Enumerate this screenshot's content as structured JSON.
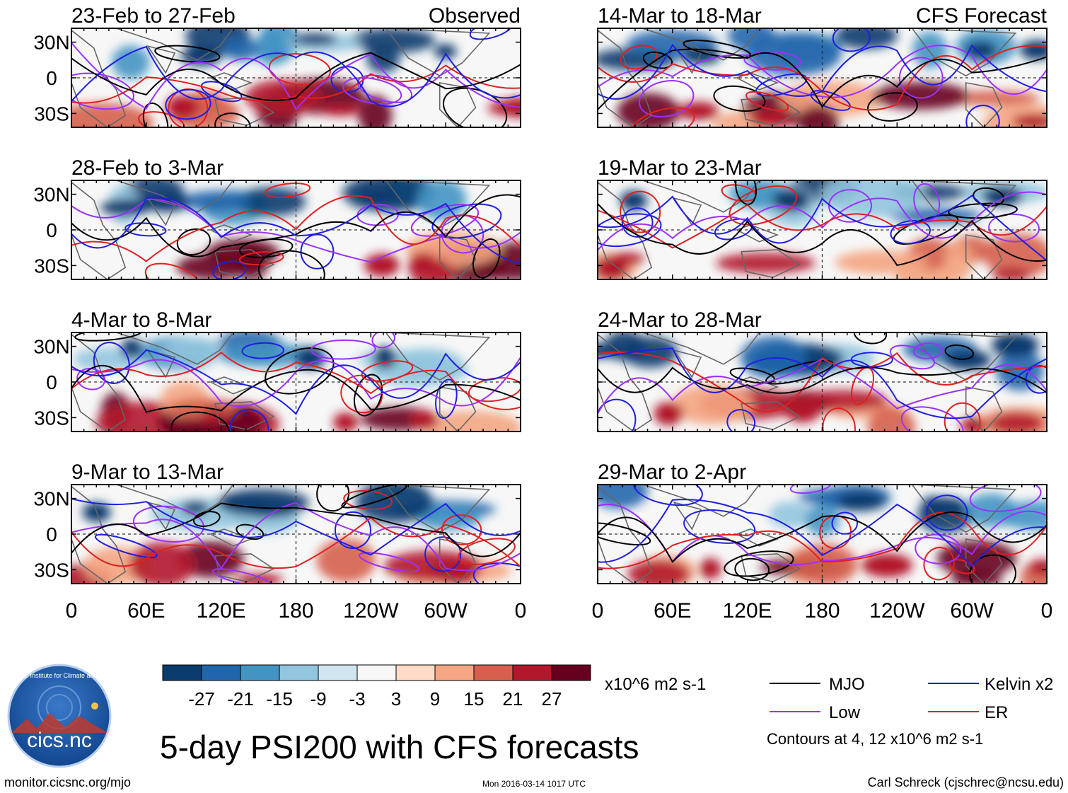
{
  "title": "5-day PSI200 with CFS forecasts",
  "observed_label": "Observed",
  "forecast_label": "CFS Forecast",
  "lat_labels": [
    "30N",
    "0",
    "30S"
  ],
  "lon_labels": [
    "0",
    "60E",
    "120E",
    "180",
    "120W",
    "60W",
    "0"
  ],
  "panels": [
    {
      "period": "23-Feb to 27-Feb",
      "kind": "observed"
    },
    {
      "period": "28-Feb to 3-Mar",
      "kind": "observed"
    },
    {
      "period": "4-Mar to 8-Mar",
      "kind": "observed"
    },
    {
      "period": "9-Mar to 13-Mar",
      "kind": "observed"
    },
    {
      "period": "14-Mar to 18-Mar",
      "kind": "forecast"
    },
    {
      "period": "19-Mar to 23-Mar",
      "kind": "forecast"
    },
    {
      "period": "24-Mar to 28-Mar",
      "kind": "forecast"
    },
    {
      "period": "29-Mar to 2-Apr",
      "kind": "forecast"
    }
  ],
  "colorbar": {
    "ticks": [
      "-27",
      "-21",
      "-15",
      "-9",
      "-3",
      "3",
      "9",
      "15",
      "21",
      "27"
    ],
    "colors": [
      "#0a3b6e",
      "#2166ac",
      "#4393c3",
      "#92c5de",
      "#d1e5f0",
      "#f7f7f7",
      "#fddbc7",
      "#f4a582",
      "#d6604d",
      "#b2182b",
      "#67001f"
    ],
    "units": "x10^6 m2 s-1"
  },
  "legend": {
    "items": [
      {
        "label": "MJO",
        "color": "#000000"
      },
      {
        "label": "Kelvin x2",
        "color": "#1f1fe0"
      },
      {
        "label": "Low",
        "color": "#9b30ff"
      },
      {
        "label": "ER",
        "color": "#e02020"
      }
    ],
    "note": "Contours at 4, 12 x10^6 m2 s-1"
  },
  "logo": {
    "org": "Cooperative Institute for Climate and Satellites",
    "name": "cics.nc"
  },
  "footer": {
    "url": "monitor.cicsnc.org/mjo",
    "timestamp": "Mon 2016-03-14 1017 UTC",
    "author": "Carl Schreck (cjschrec@ncsu.edu)"
  }
}
